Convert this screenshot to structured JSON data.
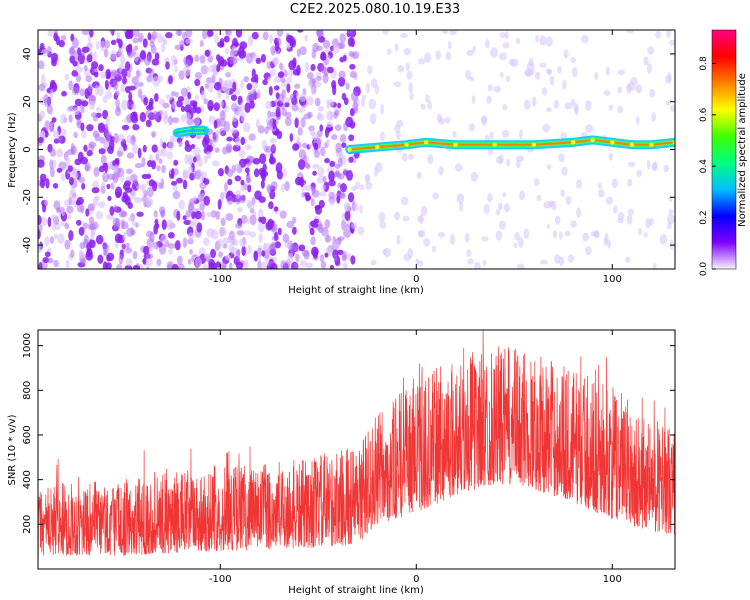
{
  "figure_title": "C2E2.2025.080.10.19.E33",
  "chart_data": [
    {
      "type": "heatmap",
      "xlabel": "Height of straight line (km)",
      "ylabel": "Frequency (Hz)",
      "xlim": [
        -193,
        132
      ],
      "ylim": [
        -50,
        50
      ],
      "x_ticks": [
        -100,
        0,
        100
      ],
      "y_ticks": [
        -40,
        -20,
        0,
        20,
        40
      ],
      "colorbar": {
        "label": "Normalized spectral amplitude",
        "range": [
          0.0,
          0.93
        ],
        "ticks": [
          0.0,
          0.2,
          0.4,
          0.6,
          0.8
        ],
        "colors": [
          "#f8f0ff",
          "#8000ff",
          "#0000ff",
          "#00c0ff",
          "#00ff80",
          "#40ff00",
          "#ffff00",
          "#ff8000",
          "#ff0000",
          "#ff0080"
        ]
      },
      "features": [
        {
          "region": "noise",
          "x_range": [
            -193,
            -30
          ],
          "y_range": [
            -50,
            50
          ],
          "amplitude": 0.05
        },
        {
          "region": "sparse",
          "x_range": [
            -30,
            132
          ],
          "y_range": [
            -50,
            50
          ],
          "amplitude": 0.02
        },
        {
          "region": "line",
          "x": [
            -122,
            -114,
            -108
          ],
          "y": [
            7,
            8,
            8
          ],
          "amplitude": 0.35
        },
        {
          "region": "line",
          "x": [
            -34,
            -20,
            -5,
            5,
            20,
            40,
            60,
            80,
            90,
            100,
            110,
            120,
            132
          ],
          "y": [
            0,
            1,
            2,
            3,
            2,
            2,
            2,
            3,
            4,
            3,
            2,
            2,
            3
          ],
          "amplitude": 0.7
        }
      ]
    },
    {
      "type": "line",
      "xlabel": "Height of straight line (km)",
      "ylabel": "SNR (10 * v/v)",
      "xlim": [
        -193,
        132
      ],
      "ylim": [
        0,
        1070
      ],
      "x_ticks": [
        -100,
        0,
        100
      ],
      "y_ticks": [
        200,
        400,
        600,
        800,
        1000
      ],
      "color": "#f03535",
      "envelope": {
        "x": [
          -193,
          -150,
          -100,
          -60,
          -30,
          -20,
          0,
          20,
          40,
          55,
          80,
          100,
          120,
          132
        ],
        "low": [
          60,
          60,
          80,
          90,
          110,
          200,
          250,
          330,
          380,
          370,
          300,
          220,
          170,
          150
        ],
        "high": [
          380,
          400,
          470,
          490,
          560,
          700,
          850,
          950,
          1000,
          990,
          900,
          820,
          680,
          650
        ]
      }
    }
  ]
}
